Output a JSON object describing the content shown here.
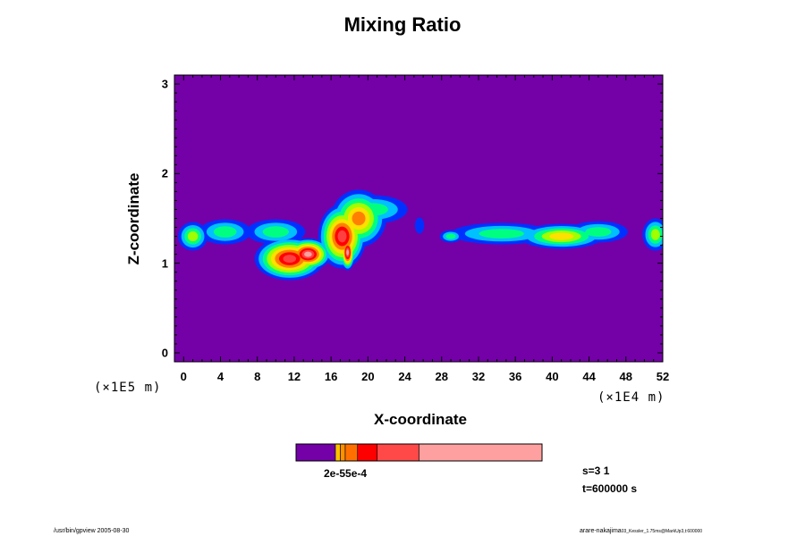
{
  "chart_data": {
    "type": "heatmap",
    "title": "Mixing Ratio",
    "xlabel": "X-coordinate",
    "ylabel": "Z-coordinate",
    "x_scale_note": "(×1E4 m)",
    "y_scale_note": "(×1E5 m)",
    "xlim": [
      -1,
      52
    ],
    "ylim": [
      -0.1,
      3.1
    ],
    "x_ticks": [
      "0",
      "4",
      "8",
      "12",
      "16",
      "20",
      "24",
      "28",
      "32",
      "36",
      "40",
      "44",
      "48",
      "52"
    ],
    "x_tick_values": [
      0,
      4,
      8,
      12,
      16,
      20,
      24,
      28,
      32,
      36,
      40,
      44,
      48,
      52
    ],
    "y_ticks": [
      "0",
      "1",
      "2",
      "3"
    ],
    "y_tick_values": [
      0,
      1,
      2,
      3
    ],
    "background_color": "#7400a8",
    "color_levels": [
      "#7400a8",
      "#0030ff",
      "#00c0ff",
      "#00ff80",
      "#a0ff00",
      "#ffe000",
      "#ff8000",
      "#ff0000",
      "#ff4040",
      "#ffa0a0"
    ],
    "colorbar_label": "2e-55e-4",
    "colorbar_colors": [
      "#7400a8",
      "#ffc000",
      "#ff9000",
      "#ff7000",
      "#ff0000",
      "#ff4848",
      "#ffa0a0"
    ],
    "colorbar_fractions": [
      0.16,
      0.02,
      0.02,
      0.05,
      0.08,
      0.17,
      0.5
    ],
    "blobs": [
      {
        "x": 1.0,
        "z": 1.3,
        "rx": 1.6,
        "rz": 0.16,
        "peak": 4
      },
      {
        "x": 4.5,
        "z": 1.35,
        "rx": 2.8,
        "rz": 0.14,
        "peak": 3
      },
      {
        "x": 10.0,
        "z": 1.35,
        "rx": 3.2,
        "rz": 0.14,
        "peak": 3
      },
      {
        "x": 11.5,
        "z": 1.05,
        "rx": 3.8,
        "rz": 0.24,
        "peak": 8
      },
      {
        "x": 13.5,
        "z": 1.1,
        "rx": 2.5,
        "rz": 0.18,
        "peak": 9
      },
      {
        "x": 17.2,
        "z": 1.3,
        "rx": 2.6,
        "rz": 0.36,
        "peak": 8
      },
      {
        "x": 19.0,
        "z": 1.5,
        "rx": 3.0,
        "rz": 0.32,
        "peak": 6
      },
      {
        "x": 20.5,
        "z": 1.6,
        "rx": 3.8,
        "rz": 0.16,
        "peak": 3
      },
      {
        "x": 17.8,
        "z": 1.12,
        "rx": 0.8,
        "rz": 0.2,
        "peak": 9
      },
      {
        "x": 25.6,
        "z": 1.42,
        "rx": 0.5,
        "rz": 0.09,
        "peak": 1
      },
      {
        "x": 29.0,
        "z": 1.3,
        "rx": 1.2,
        "rz": 0.07,
        "peak": 3
      },
      {
        "x": 34.5,
        "z": 1.33,
        "rx": 5.5,
        "rz": 0.12,
        "peak": 3
      },
      {
        "x": 41.0,
        "z": 1.3,
        "rx": 4.6,
        "rz": 0.14,
        "peak": 5
      },
      {
        "x": 45.0,
        "z": 1.35,
        "rx": 3.2,
        "rz": 0.12,
        "peak": 3
      },
      {
        "x": 51.2,
        "z": 1.32,
        "rx": 1.4,
        "rz": 0.18,
        "peak": 4
      }
    ]
  },
  "info": {
    "step_label": "s=3 1",
    "time_label": "t=600000 s"
  },
  "footer": {
    "left": "/usr/bin/gpview 2005-08-30",
    "right": "arare-nakajima",
    "right_small": "03_Kessler_1.75ms@MarkUp3,t:600000"
  }
}
